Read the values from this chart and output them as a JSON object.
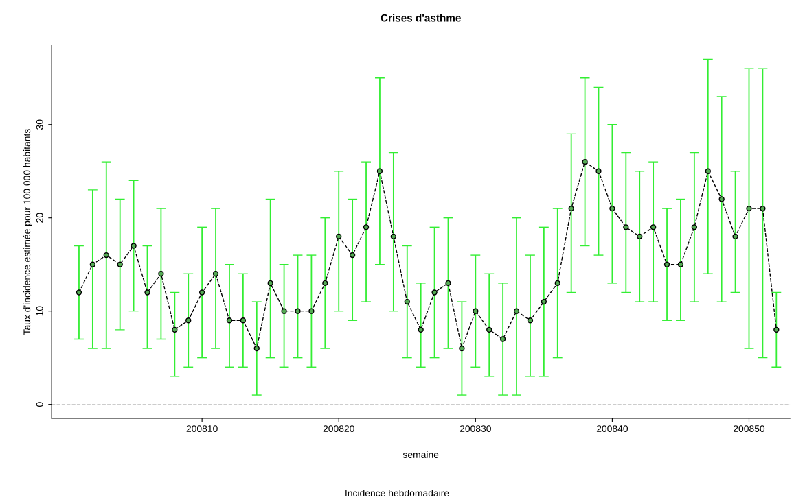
{
  "chart_data": {
    "type": "line",
    "title": "Crises d'asthme",
    "xlabel": "semaine",
    "ylabel": "Taux d'incidence estimée pour 100 000 habitants",
    "annotations": [
      "Incidence hebdomadaire"
    ],
    "x": [
      200801,
      200802,
      200803,
      200804,
      200805,
      200806,
      200807,
      200808,
      200809,
      200810,
      200811,
      200812,
      200813,
      200814,
      200815,
      200816,
      200817,
      200818,
      200819,
      200820,
      200821,
      200822,
      200823,
      200824,
      200825,
      200826,
      200827,
      200828,
      200829,
      200830,
      200831,
      200832,
      200833,
      200834,
      200835,
      200836,
      200837,
      200838,
      200839,
      200840,
      200841,
      200842,
      200843,
      200844,
      200845,
      200846,
      200847,
      200848,
      200849,
      200850,
      200851,
      200852
    ],
    "series": [
      {
        "color": "#000000",
        "marker": "circle",
        "line_style": "dashed",
        "values": [
          12,
          15,
          16,
          15,
          17,
          12,
          14,
          8,
          9,
          12,
          14,
          9,
          9,
          6,
          13,
          10,
          10,
          10,
          13,
          18,
          16,
          19,
          25,
          18,
          11,
          8,
          12,
          13,
          6,
          10,
          8,
          7,
          10,
          9,
          11,
          13,
          21,
          26,
          25,
          21,
          19,
          18,
          19,
          15,
          15,
          19,
          25,
          22,
          18,
          21,
          21,
          8
        ],
        "errors": [
          [
            7,
            17
          ],
          [
            6,
            23
          ],
          [
            6,
            26
          ],
          [
            8,
            22
          ],
          [
            10,
            24
          ],
          [
            6,
            17
          ],
          [
            7,
            21
          ],
          [
            3,
            12
          ],
          [
            4,
            14
          ],
          [
            5,
            19
          ],
          [
            6,
            21
          ],
          [
            4,
            15
          ],
          [
            4,
            14
          ],
          [
            1,
            11
          ],
          [
            5,
            22
          ],
          [
            4,
            15
          ],
          [
            5,
            16
          ],
          [
            4,
            16
          ],
          [
            6,
            20
          ],
          [
            10,
            25
          ],
          [
            9,
            22
          ],
          [
            11,
            26
          ],
          [
            15,
            35
          ],
          [
            10,
            27
          ],
          [
            5,
            17
          ],
          [
            4,
            13
          ],
          [
            5,
            19
          ],
          [
            6,
            20
          ],
          [
            1,
            11
          ],
          [
            4,
            16
          ],
          [
            3,
            14
          ],
          [
            1,
            13
          ],
          [
            1,
            20
          ],
          [
            3,
            16
          ],
          [
            3,
            19
          ],
          [
            5,
            21
          ],
          [
            12,
            29
          ],
          [
            17,
            35
          ],
          [
            16,
            34
          ],
          [
            13,
            30
          ],
          [
            12,
            27
          ],
          [
            11,
            25
          ],
          [
            11,
            26
          ],
          [
            9,
            21
          ],
          [
            9,
            22
          ],
          [
            11,
            27
          ],
          [
            14,
            37
          ],
          [
            11,
            33
          ],
          [
            12,
            25
          ],
          [
            6,
            36
          ],
          [
            5,
            36
          ],
          [
            4,
            12
          ]
        ]
      }
    ],
    "xlim": [
      200799,
      200853
    ],
    "xticks": [
      200810,
      200820,
      200830,
      200840,
      200850
    ],
    "ylim": [
      -1.5,
      38.5
    ],
    "yticks": [
      0,
      10,
      20,
      30
    ],
    "ref_lines": [
      {
        "axis": "y",
        "value": 0,
        "color": "#cccccc",
        "line_style": "dashed"
      }
    ],
    "grid": false,
    "legend": false
  }
}
